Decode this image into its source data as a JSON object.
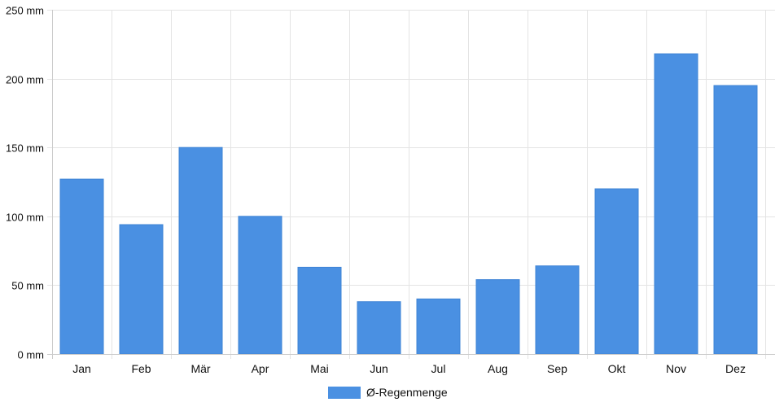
{
  "chart_data": {
    "type": "bar",
    "title": "",
    "xlabel": "",
    "ylabel": "",
    "categories": [
      "Jan",
      "Feb",
      "Mär",
      "Apr",
      "Mai",
      "Jun",
      "Jul",
      "Aug",
      "Sep",
      "Okt",
      "Nov",
      "Dez"
    ],
    "series": [
      {
        "name": "Ø-Regenmenge",
        "color": "#4a90e2",
        "values": [
          127,
          94,
          150,
          100,
          63,
          38,
          40,
          54,
          64,
          120,
          218,
          195
        ]
      }
    ],
    "ylim": [
      0,
      250
    ],
    "yticks": [
      0,
      50,
      100,
      150,
      200,
      250
    ],
    "ytick_labels": [
      "0 mm",
      "50 mm",
      "100 mm",
      "150 mm",
      "200 mm",
      "250 mm"
    ],
    "y_unit": "mm",
    "grid": true,
    "legend_position": "bottom-center"
  }
}
